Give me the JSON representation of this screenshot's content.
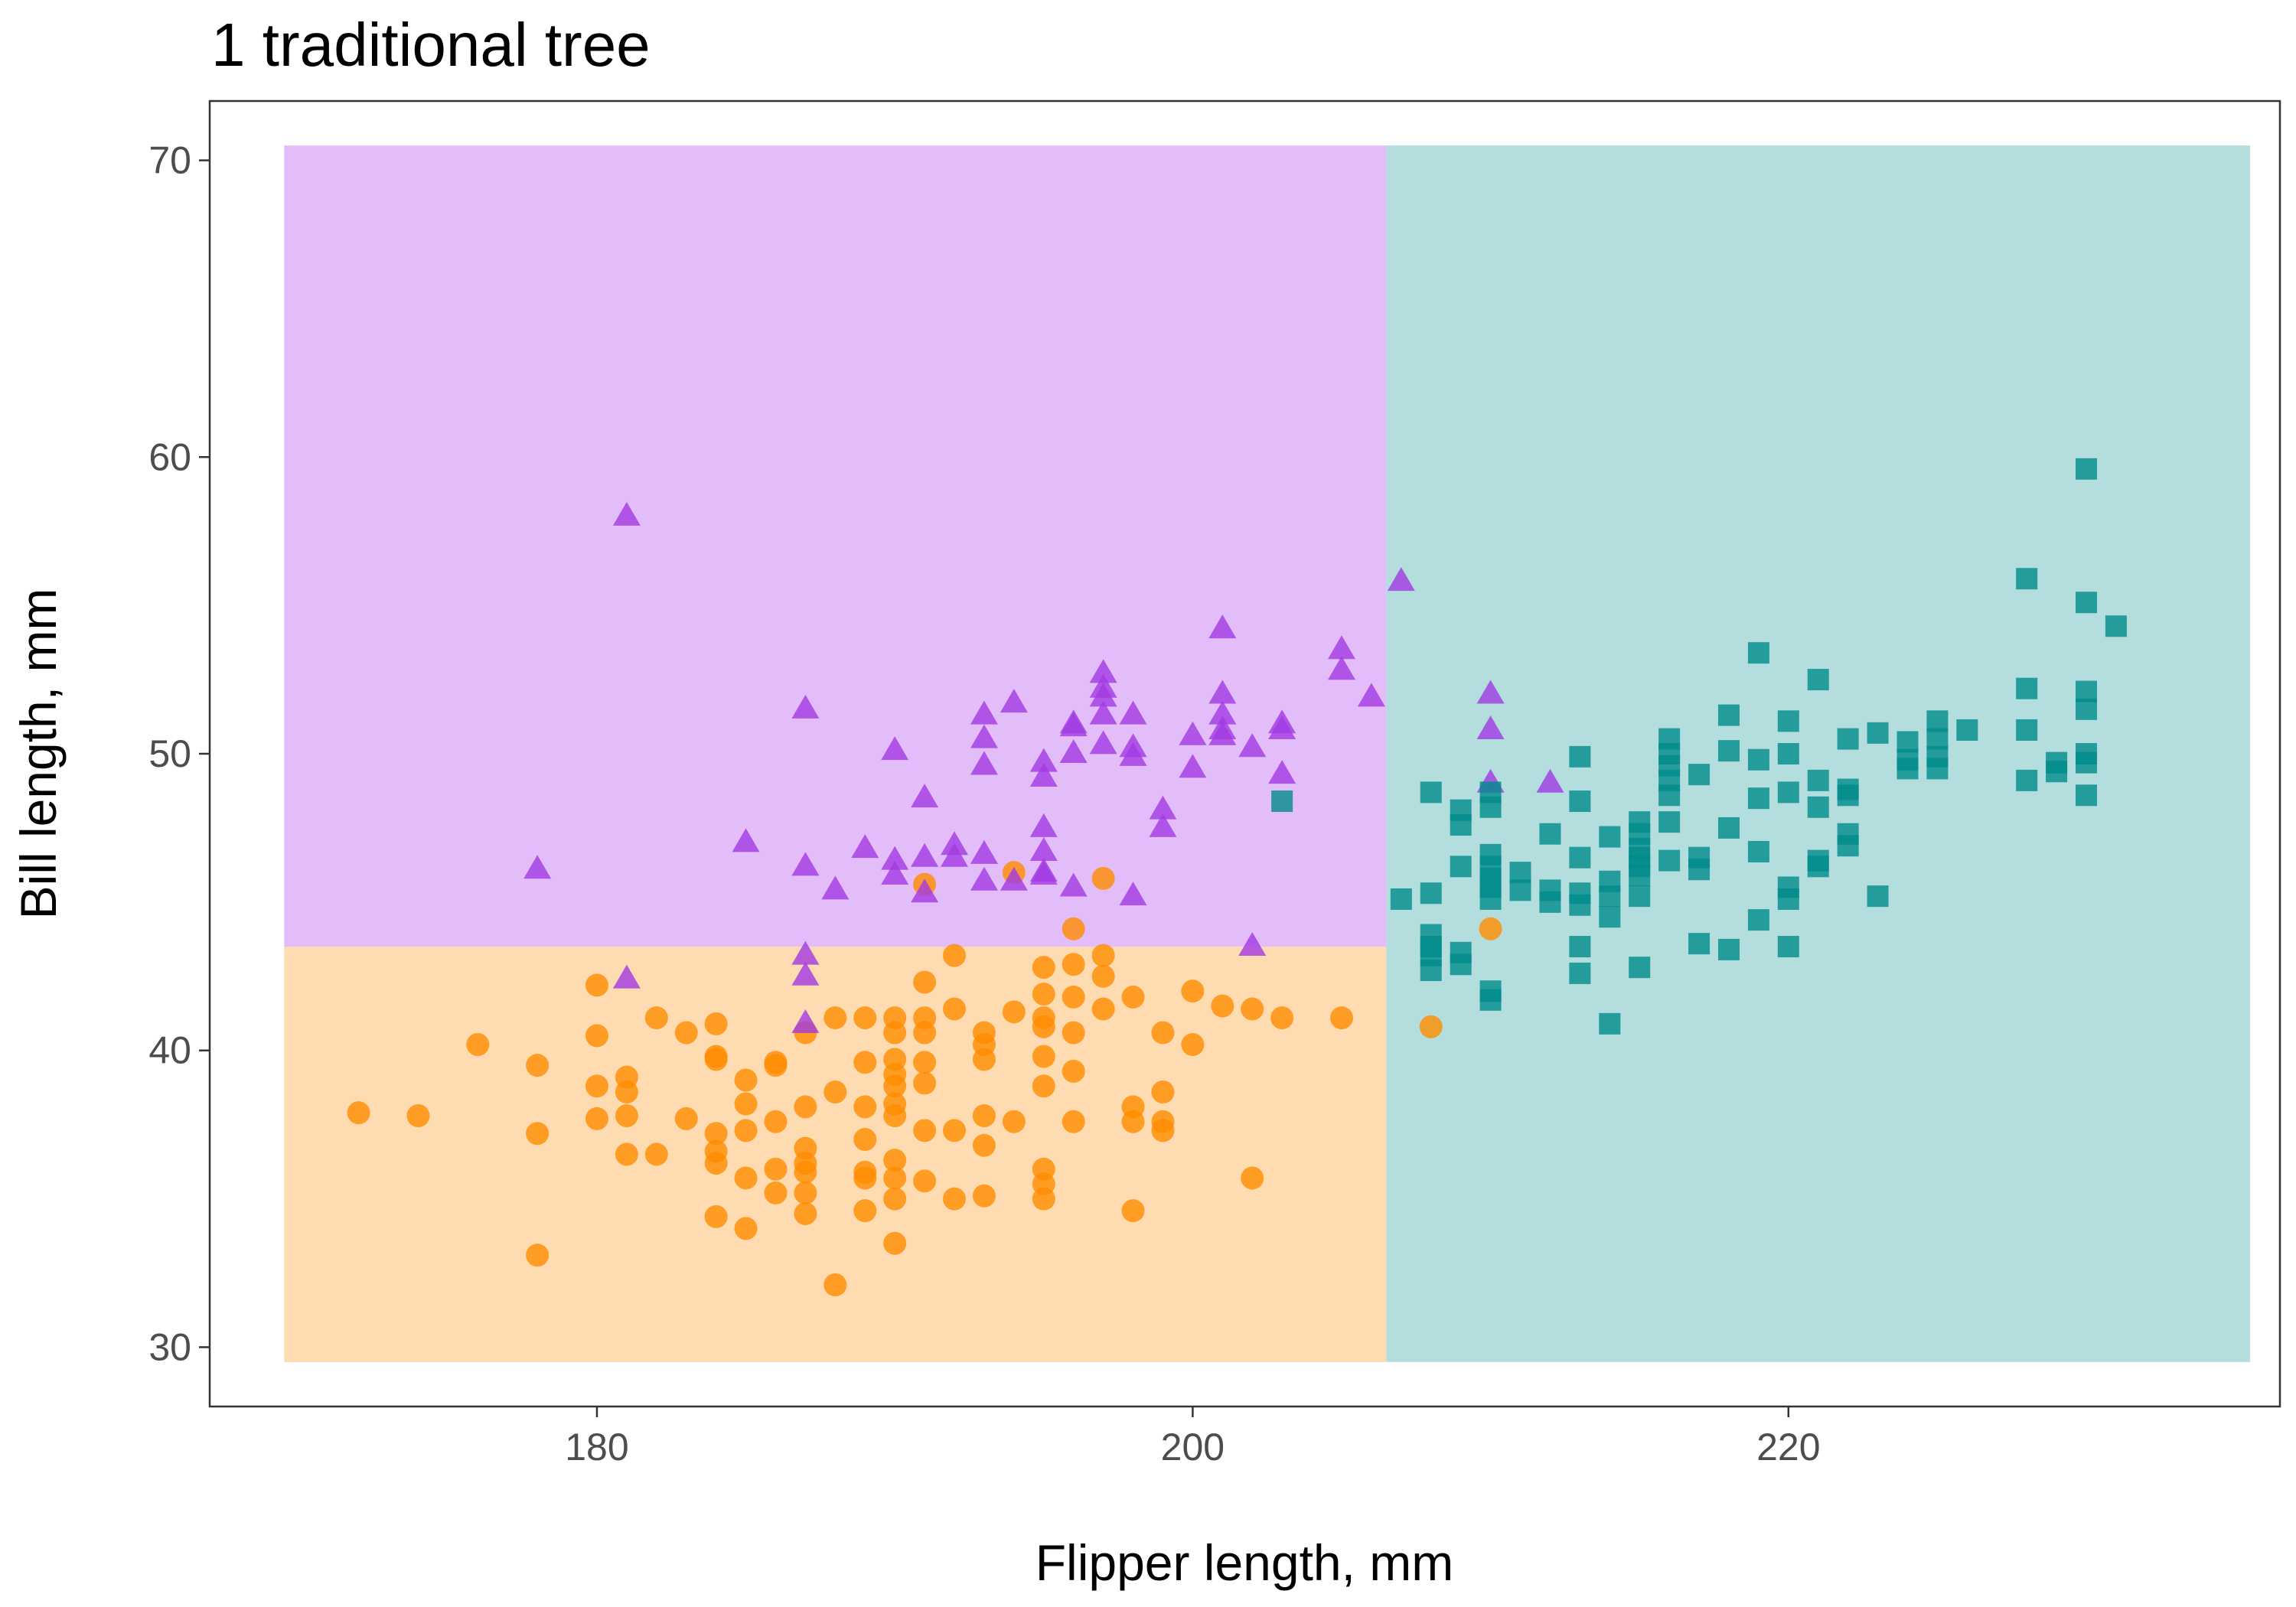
{
  "chart_data": {
    "type": "scatter",
    "title": "1 traditional tree",
    "xlabel": "Flipper length, mm",
    "ylabel": "Bill length, mm",
    "xlim": [
      167,
      236.5
    ],
    "ylim": [
      28,
      72
    ],
    "x_ticks": [
      180,
      200,
      220
    ],
    "y_ticks": [
      30,
      40,
      50,
      60,
      70
    ],
    "grid": false,
    "legend": "none",
    "regions": [
      {
        "x0": 169.5,
        "x1": 206.5,
        "y0": 43.5,
        "y1": 70.5,
        "color": "#e3bdfa"
      },
      {
        "x0": 169.5,
        "x1": 206.5,
        "y0": 29.5,
        "y1": 43.5,
        "color": "#fedbb1"
      },
      {
        "x0": 206.5,
        "x1": 235.5,
        "y0": 29.5,
        "y1": 70.5,
        "color": "#b3dedd"
      }
    ],
    "series": [
      {
        "shape": "circle",
        "color": "#ff8c00",
        "points": [
          [
            172,
            37.9
          ],
          [
            174,
            37.8
          ],
          [
            176,
            40.2
          ],
          [
            178,
            39.5
          ],
          [
            178,
            37.2
          ],
          [
            178,
            33.1
          ],
          [
            180,
            42.2
          ],
          [
            180,
            40.5
          ],
          [
            180,
            38.8
          ],
          [
            180,
            37.7
          ],
          [
            181,
            39.1
          ],
          [
            181,
            38.6
          ],
          [
            181,
            37.8
          ],
          [
            181,
            36.5
          ],
          [
            182,
            41.1
          ],
          [
            182,
            36.5
          ],
          [
            183,
            40.6
          ],
          [
            183,
            37.7
          ],
          [
            184,
            40.9
          ],
          [
            184,
            39.8
          ],
          [
            184,
            39.7
          ],
          [
            184,
            37.2
          ],
          [
            184,
            36.6
          ],
          [
            184,
            36.2
          ],
          [
            184,
            34.4
          ],
          [
            185,
            39.0
          ],
          [
            185,
            38.2
          ],
          [
            185,
            37.3
          ],
          [
            185,
            35.7
          ],
          [
            185,
            34.0
          ],
          [
            186,
            39.6
          ],
          [
            186,
            39.5
          ],
          [
            186,
            37.6
          ],
          [
            186,
            36.0
          ],
          [
            186,
            35.2
          ],
          [
            187,
            40.6
          ],
          [
            187,
            38.1
          ],
          [
            187,
            36.7
          ],
          [
            187,
            36.2
          ],
          [
            187,
            35.9
          ],
          [
            187,
            35.2
          ],
          [
            187,
            34.5
          ],
          [
            188,
            41.1
          ],
          [
            188,
            38.6
          ],
          [
            188,
            32.1
          ],
          [
            189,
            41.1
          ],
          [
            189,
            39.6
          ],
          [
            189,
            38.1
          ],
          [
            189,
            37.0
          ],
          [
            189,
            35.9
          ],
          [
            189,
            35.7
          ],
          [
            189,
            34.6
          ],
          [
            190,
            41.1
          ],
          [
            190,
            40.6
          ],
          [
            190,
            39.7
          ],
          [
            190,
            39.2
          ],
          [
            190,
            38.8
          ],
          [
            190,
            38.2
          ],
          [
            190,
            37.8
          ],
          [
            190,
            36.3
          ],
          [
            190,
            35.7
          ],
          [
            190,
            35.0
          ],
          [
            190,
            33.5
          ],
          [
            191,
            45.6
          ],
          [
            191,
            42.3
          ],
          [
            191,
            41.1
          ],
          [
            191,
            40.6
          ],
          [
            191,
            39.6
          ],
          [
            191,
            38.9
          ],
          [
            191,
            37.3
          ],
          [
            191,
            35.6
          ],
          [
            192,
            43.2
          ],
          [
            192,
            41.4
          ],
          [
            192,
            37.3
          ],
          [
            192,
            35.0
          ],
          [
            193,
            40.6
          ],
          [
            193,
            40.2
          ],
          [
            193,
            39.7
          ],
          [
            193,
            37.8
          ],
          [
            193,
            36.8
          ],
          [
            193,
            35.1
          ],
          [
            194,
            46.0
          ],
          [
            194,
            41.3
          ],
          [
            194,
            37.6
          ],
          [
            195,
            42.8
          ],
          [
            195,
            41.9
          ],
          [
            195,
            41.1
          ],
          [
            195,
            40.8
          ],
          [
            195,
            39.8
          ],
          [
            195,
            38.8
          ],
          [
            195,
            36.0
          ],
          [
            195,
            35.5
          ],
          [
            195,
            35.0
          ],
          [
            196,
            44.1
          ],
          [
            196,
            42.9
          ],
          [
            196,
            41.8
          ],
          [
            196,
            40.6
          ],
          [
            196,
            39.3
          ],
          [
            196,
            37.6
          ],
          [
            197,
            45.8
          ],
          [
            197,
            43.2
          ],
          [
            197,
            42.5
          ],
          [
            197,
            41.4
          ],
          [
            198,
            41.8
          ],
          [
            198,
            38.1
          ],
          [
            198,
            37.6
          ],
          [
            198,
            34.6
          ],
          [
            199,
            40.6
          ],
          [
            199,
            38.6
          ],
          [
            199,
            37.6
          ],
          [
            199,
            37.3
          ],
          [
            200,
            42.0
          ],
          [
            200,
            40.2
          ],
          [
            201,
            41.5
          ],
          [
            202,
            41.4
          ],
          [
            202,
            35.7
          ],
          [
            203,
            41.1
          ],
          [
            205,
            41.1
          ],
          [
            208,
            40.8
          ],
          [
            210,
            44.1
          ]
        ]
      },
      {
        "shape": "triangle",
        "color": "#a13ae2",
        "points": [
          [
            178,
            46.1
          ],
          [
            181,
            58.0
          ],
          [
            181,
            42.4
          ],
          [
            185,
            47.0
          ],
          [
            187,
            51.5
          ],
          [
            187,
            46.2
          ],
          [
            187,
            43.2
          ],
          [
            187,
            42.5
          ],
          [
            187,
            40.9
          ],
          [
            188,
            45.4
          ],
          [
            189,
            46.8
          ],
          [
            190,
            50.1
          ],
          [
            190,
            46.4
          ],
          [
            190,
            45.9
          ],
          [
            191,
            48.5
          ],
          [
            191,
            46.5
          ],
          [
            191,
            45.3
          ],
          [
            192,
            46.9
          ],
          [
            192,
            46.5
          ],
          [
            193,
            51.3
          ],
          [
            193,
            50.5
          ],
          [
            193,
            49.6
          ],
          [
            193,
            46.6
          ],
          [
            193,
            45.7
          ],
          [
            194,
            51.7
          ],
          [
            194,
            45.7
          ],
          [
            195,
            49.7
          ],
          [
            195,
            49.2
          ],
          [
            195,
            47.5
          ],
          [
            195,
            46.7
          ],
          [
            195,
            46.0
          ],
          [
            195,
            45.9
          ],
          [
            196,
            51.0
          ],
          [
            196,
            50.9
          ],
          [
            196,
            50.0
          ],
          [
            196,
            45.5
          ],
          [
            197,
            52.7
          ],
          [
            197,
            52.2
          ],
          [
            197,
            51.9
          ],
          [
            197,
            51.3
          ],
          [
            197,
            50.3
          ],
          [
            198,
            51.3
          ],
          [
            198,
            50.2
          ],
          [
            198,
            49.9
          ],
          [
            198,
            45.2
          ],
          [
            199,
            48.1
          ],
          [
            199,
            47.5
          ],
          [
            200,
            50.6
          ],
          [
            200,
            49.5
          ],
          [
            201,
            54.2
          ],
          [
            201,
            52.0
          ],
          [
            201,
            51.3
          ],
          [
            201,
            50.8
          ],
          [
            201,
            50.6
          ],
          [
            202,
            50.2
          ],
          [
            202,
            43.5
          ],
          [
            203,
            51.0
          ],
          [
            203,
            50.8
          ],
          [
            203,
            49.3
          ],
          [
            205,
            53.5
          ],
          [
            205,
            52.8
          ],
          [
            206,
            51.9
          ],
          [
            207,
            55.8
          ],
          [
            210,
            52.0
          ],
          [
            210,
            50.8
          ],
          [
            210,
            49.0
          ],
          [
            212,
            49.0
          ]
        ]
      },
      {
        "shape": "square",
        "color": "#008b8b",
        "points": [
          [
            203,
            48.4
          ],
          [
            207,
            45.1
          ],
          [
            208,
            48.7
          ],
          [
            208,
            45.3
          ],
          [
            208,
            43.9
          ],
          [
            208,
            43.5
          ],
          [
            208,
            43.2
          ],
          [
            208,
            42.7
          ],
          [
            209,
            48.1
          ],
          [
            209,
            47.6
          ],
          [
            209,
            46.2
          ],
          [
            209,
            43.3
          ],
          [
            209,
            42.9
          ],
          [
            210,
            48.7
          ],
          [
            210,
            48.2
          ],
          [
            210,
            46.6
          ],
          [
            210,
            46.2
          ],
          [
            210,
            45.8
          ],
          [
            210,
            45.5
          ],
          [
            210,
            45.1
          ],
          [
            210,
            42.0
          ],
          [
            210,
            41.7
          ],
          [
            211,
            46.0
          ],
          [
            211,
            45.4
          ],
          [
            212,
            47.3
          ],
          [
            212,
            45.4
          ],
          [
            212,
            45.0
          ],
          [
            213,
            49.9
          ],
          [
            213,
            48.4
          ],
          [
            213,
            46.5
          ],
          [
            213,
            45.3
          ],
          [
            213,
            44.9
          ],
          [
            213,
            43.5
          ],
          [
            213,
            42.6
          ],
          [
            214,
            47.2
          ],
          [
            214,
            45.7
          ],
          [
            214,
            45.2
          ],
          [
            214,
            44.5
          ],
          [
            214,
            40.9
          ],
          [
            215,
            47.7
          ],
          [
            215,
            47.3
          ],
          [
            215,
            46.8
          ],
          [
            215,
            46.5
          ],
          [
            215,
            46.2
          ],
          [
            215,
            45.9
          ],
          [
            215,
            45.2
          ],
          [
            215,
            42.8
          ],
          [
            216,
            50.5
          ],
          [
            216,
            50.0
          ],
          [
            216,
            49.6
          ],
          [
            216,
            49.1
          ],
          [
            216,
            48.6
          ],
          [
            216,
            47.7
          ],
          [
            216,
            46.4
          ],
          [
            217,
            49.3
          ],
          [
            217,
            46.5
          ],
          [
            217,
            46.1
          ],
          [
            217,
            43.6
          ],
          [
            218,
            51.3
          ],
          [
            218,
            50.1
          ],
          [
            218,
            47.5
          ],
          [
            218,
            43.4
          ],
          [
            219,
            53.4
          ],
          [
            219,
            49.8
          ],
          [
            219,
            48.5
          ],
          [
            219,
            46.7
          ],
          [
            219,
            44.4
          ],
          [
            220,
            51.1
          ],
          [
            220,
            50.0
          ],
          [
            220,
            48.7
          ],
          [
            220,
            45.5
          ],
          [
            220,
            45.1
          ],
          [
            220,
            43.5
          ],
          [
            221,
            52.5
          ],
          [
            221,
            49.1
          ],
          [
            221,
            48.2
          ],
          [
            221,
            46.4
          ],
          [
            221,
            46.2
          ],
          [
            222,
            50.5
          ],
          [
            222,
            48.8
          ],
          [
            222,
            48.6
          ],
          [
            222,
            47.3
          ],
          [
            222,
            46.9
          ],
          [
            223,
            45.2
          ],
          [
            223,
            50.7
          ],
          [
            224,
            50.4
          ],
          [
            224,
            49.8
          ],
          [
            224,
            49.5
          ],
          [
            225,
            51.1
          ],
          [
            225,
            50.5
          ],
          [
            225,
            49.9
          ],
          [
            225,
            49.5
          ],
          [
            226,
            50.8
          ],
          [
            228,
            55.9
          ],
          [
            228,
            52.2
          ],
          [
            228,
            50.8
          ],
          [
            228,
            49.1
          ],
          [
            229,
            49.7
          ],
          [
            229,
            49.4
          ],
          [
            230,
            59.6
          ],
          [
            230,
            55.1
          ],
          [
            230,
            52.1
          ],
          [
            230,
            51.5
          ],
          [
            230,
            50.0
          ],
          [
            230,
            49.7
          ],
          [
            230,
            48.6
          ],
          [
            231,
            54.3
          ]
        ]
      }
    ]
  }
}
